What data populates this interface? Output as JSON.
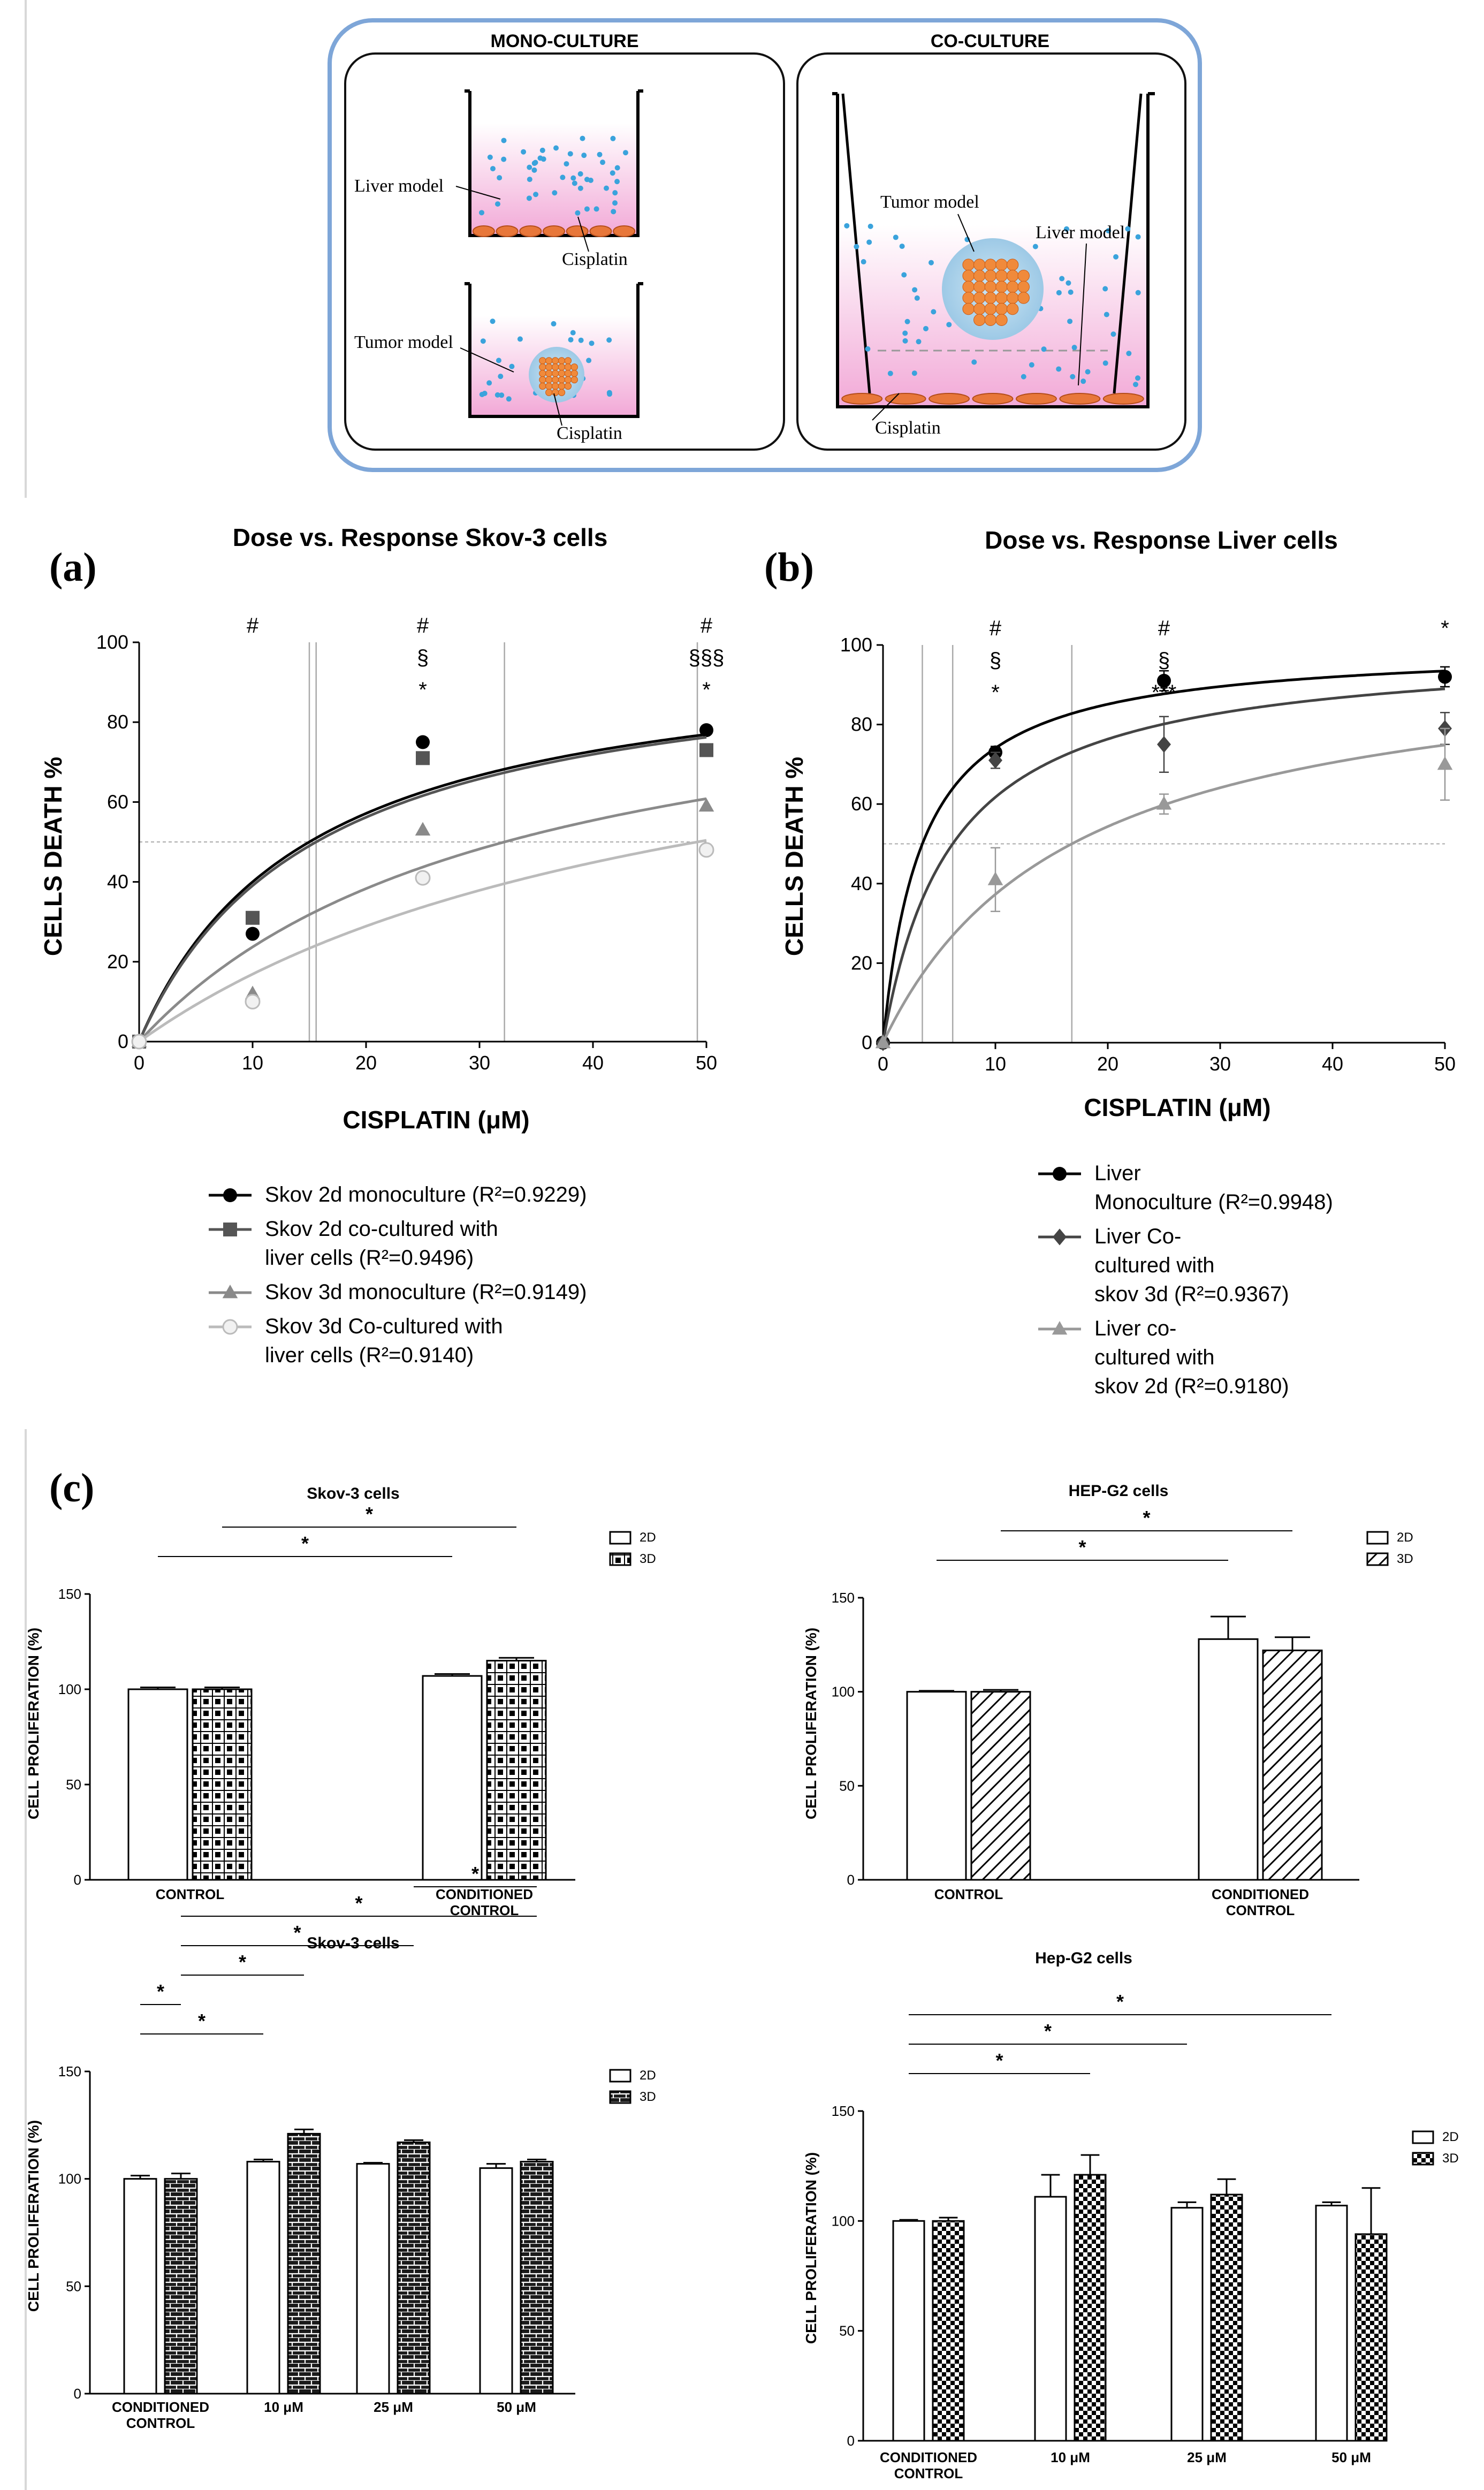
{
  "schematic": {
    "mono_title": "MONO-CULTURE",
    "co_title": "CO-CULTURE",
    "liver_model": "Liver model",
    "tumor_model": "Tumor model",
    "cisplatin": "Cisplatin"
  },
  "panel_labels": {
    "a": "(a)",
    "b": "(b)",
    "c": "(c)"
  },
  "chart_data": [
    {
      "id": "a",
      "type": "scatter",
      "title": "Dose vs. Response Skov-3 cells",
      "xlabel": "CISPLATIN (μM)",
      "ylabel": "CELLS DEATH %",
      "xlim": [
        0,
        50
      ],
      "ylim": [
        0,
        100
      ],
      "xticks": [
        0,
        10,
        20,
        30,
        40,
        50
      ],
      "yticks": [
        0,
        20,
        40,
        60,
        80,
        100
      ],
      "ref_line_y": 50,
      "ec50_lines_x": [
        15,
        15.6,
        32.2,
        49.2
      ],
      "x": [
        0,
        10,
        25,
        50
      ],
      "series": [
        {
          "name": "Skov 2d monoculture (R²=0.9229)",
          "marker": "circle",
          "color": "#000000",
          "values": [
            0,
            27,
            75,
            78
          ],
          "fit_ymax": 100,
          "fit_ec50": 15
        },
        {
          "name": "Skov 2d co-cultured with liver cells (R²=0.9496)",
          "marker": "square",
          "color": "#555555",
          "values": [
            0,
            31,
            71,
            73
          ],
          "fit_ymax": 100,
          "fit_ec50": 15.6
        },
        {
          "name": "Skov 3d monoculture (R²=0.9149)",
          "marker": "triangle",
          "color": "#8a8a8a",
          "values": [
            0,
            12,
            53,
            59
          ],
          "fit_ymax": 100,
          "fit_ec50": 32.2
        },
        {
          "name": "Skov 3d Co-cultured with liver cells (R²=0.9140)",
          "marker": "circle-open",
          "color": "#bbbbbb",
          "values": [
            0,
            10,
            41,
            48
          ],
          "fit_ymax": 100,
          "fit_ec50": 49.2
        }
      ],
      "annotations": [
        {
          "x": 10,
          "lines": [
            "#"
          ]
        },
        {
          "x": 25,
          "lines": [
            "#",
            "§",
            "*"
          ]
        },
        {
          "x": 50,
          "lines": [
            "#",
            "§§§",
            "*"
          ]
        }
      ]
    },
    {
      "id": "b",
      "type": "scatter",
      "title": "Dose vs. Response Liver cells",
      "xlabel": "CISPLATIN (μM)",
      "ylabel": "CELLS DEATH %",
      "xlim": [
        0,
        50
      ],
      "ylim": [
        0,
        100
      ],
      "xticks": [
        0,
        10,
        20,
        30,
        40,
        50
      ],
      "yticks": [
        0,
        20,
        40,
        60,
        80,
        100
      ],
      "ref_line_y": 50,
      "ec50_lines_x": [
        3.5,
        6.2,
        16.8
      ],
      "x": [
        0,
        10,
        25,
        50
      ],
      "series": [
        {
          "name": "Liver Monoculture (R²=0.9948)",
          "marker": "circle",
          "color": "#000000",
          "values": [
            0,
            73,
            91,
            92
          ],
          "errors": [
            0,
            1.5,
            2.5,
            2.5
          ],
          "fit_ymax": 100,
          "fit_ec50": 3.5
        },
        {
          "name": "Liver Co-cultured with skov 3d (R²=0.9367)",
          "marker": "diamond",
          "color": "#444444",
          "values": [
            0,
            71,
            75,
            79
          ],
          "errors": [
            0,
            2,
            7,
            4
          ],
          "fit_ymax": 100,
          "fit_ec50": 6.2
        },
        {
          "name": "Liver co-cultured with skov 2d (R²=0.9180)",
          "marker": "triangle",
          "color": "#999999",
          "values": [
            0,
            41,
            60,
            70
          ],
          "errors": [
            0,
            8,
            2.5,
            9
          ],
          "fit_ymax": 100,
          "fit_ec50": 16.8
        }
      ],
      "annotations": [
        {
          "x": 10,
          "lines": [
            "#",
            "§",
            "*"
          ]
        },
        {
          "x": 25,
          "lines": [
            "#",
            "§",
            "***"
          ]
        },
        {
          "x": 50,
          "lines": [
            "*"
          ]
        }
      ]
    },
    {
      "id": "c1",
      "type": "bar",
      "title": "Skov-3 cells",
      "ylabel": "CELL PROLIFERATION (%)",
      "ylim": [
        0,
        150
      ],
      "yticks": [
        0,
        50,
        100,
        150
      ],
      "categories": [
        "CONTROL",
        "CONDITIONED CONTROL"
      ],
      "series": [
        {
          "name": "2D",
          "pattern": "empty",
          "values": [
            100,
            107
          ],
          "errors": [
            1,
            1
          ]
        },
        {
          "name": "3D",
          "pattern": "grid",
          "values": [
            100,
            115
          ],
          "errors": [
            1,
            1.5
          ]
        }
      ],
      "significance": [
        {
          "from": [
            0,
            0
          ],
          "to": [
            1,
            0
          ],
          "label": "*"
        },
        {
          "from": [
            0,
            1
          ],
          "to": [
            1,
            1
          ],
          "label": "*"
        }
      ]
    },
    {
      "id": "c2",
      "type": "bar",
      "title": "HEP-G2 cells",
      "ylabel": "CELL PROLIFERATION (%)",
      "ylim": [
        0,
        150
      ],
      "yticks": [
        0,
        50,
        100,
        150
      ],
      "categories": [
        "CONTROL",
        "CONDITIONED CONTROL"
      ],
      "series": [
        {
          "name": "2D",
          "pattern": "empty",
          "values": [
            100,
            128
          ],
          "errors": [
            0.5,
            12
          ]
        },
        {
          "name": "3D",
          "pattern": "hatch",
          "values": [
            100,
            122
          ],
          "errors": [
            1,
            7
          ]
        }
      ],
      "significance": [
        {
          "from": [
            0,
            0
          ],
          "to": [
            1,
            0
          ],
          "label": "*"
        },
        {
          "from": [
            0,
            1
          ],
          "to": [
            1,
            1
          ],
          "label": "*"
        }
      ]
    },
    {
      "id": "c3",
      "type": "bar",
      "title": "Skov-3 cells",
      "ylabel": "CELL PROLIFERATION (%)",
      "ylim": [
        0,
        150
      ],
      "yticks": [
        0,
        50,
        100,
        150
      ],
      "categories": [
        "CONDITIONED CONTROL",
        "10 μM",
        "25 μM",
        "50 μM"
      ],
      "series": [
        {
          "name": "2D",
          "pattern": "empty",
          "values": [
            100,
            108,
            107,
            105
          ],
          "errors": [
            1.5,
            1,
            0.5,
            2
          ]
        },
        {
          "name": "3D",
          "pattern": "brick",
          "values": [
            100,
            121,
            117,
            108
          ],
          "errors": [
            2.5,
            2,
            1,
            1
          ]
        }
      ],
      "significance": [
        {
          "from": [
            0,
            0
          ],
          "to": [
            1,
            0
          ],
          "label": "*"
        },
        {
          "from": [
            0,
            0
          ],
          "to": [
            0,
            1
          ],
          "label": "*"
        },
        {
          "from": [
            0,
            1
          ],
          "to": [
            1,
            1
          ],
          "label": "*"
        },
        {
          "from": [
            0,
            1
          ],
          "to": [
            2,
            1
          ],
          "label": "*"
        },
        {
          "from": [
            0,
            1
          ],
          "to": [
            3,
            1
          ],
          "label": "*"
        },
        {
          "from": [
            2,
            1
          ],
          "to": [
            3,
            1
          ],
          "label": "*"
        }
      ]
    },
    {
      "id": "c4",
      "type": "bar",
      "title": "Hep-G2 cells",
      "ylabel": "CELL PROLIFERATION (%)",
      "ylim": [
        0,
        150
      ],
      "yticks": [
        0,
        50,
        100,
        150
      ],
      "categories": [
        "CONDITIONED CONTROL",
        "10 μM",
        "25 μM",
        "50 μM"
      ],
      "series": [
        {
          "name": "2D",
          "pattern": "empty",
          "values": [
            100,
            111,
            106,
            107
          ],
          "errors": [
            0.5,
            10,
            2.5,
            1.5
          ]
        },
        {
          "name": "3D",
          "pattern": "check",
          "values": [
            100,
            121,
            112,
            94
          ],
          "errors": [
            1.5,
            9,
            7,
            21
          ]
        }
      ],
      "significance": [
        {
          "from": [
            0,
            0
          ],
          "to": [
            1,
            1
          ],
          "label": "*"
        },
        {
          "from": [
            0,
            0
          ],
          "to": [
            2,
            0
          ],
          "label": "*"
        },
        {
          "from": [
            0,
            0
          ],
          "to": [
            3,
            0
          ],
          "label": "*"
        }
      ]
    }
  ]
}
